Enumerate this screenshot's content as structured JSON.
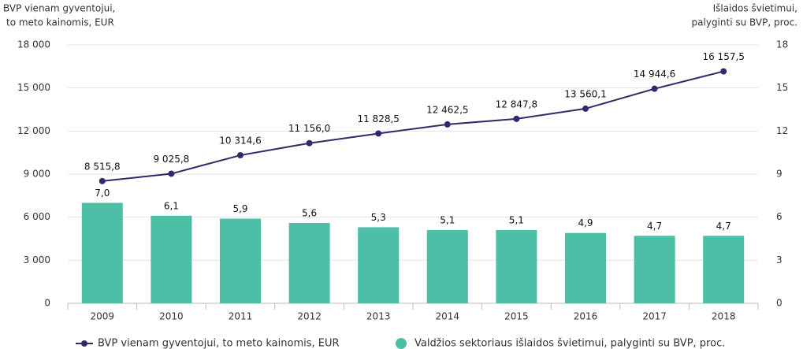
{
  "chart_data": {
    "type": "bar_line",
    "ylabel": [
      "BVP vienam gyventojui,",
      "to meto kainomis, EUR"
    ],
    "y2label": [
      "Išlaidos švietimui,",
      "palyginti su BVP, proc."
    ],
    "categories": [
      "2009",
      "2010",
      "2011",
      "2012",
      "2013",
      "2014",
      "2015",
      "2016",
      "2017",
      "2018"
    ],
    "series": [
      {
        "name": "BVP vienam gyventojui, to meto kainomis, EUR",
        "type": "line",
        "color": "#2e2b6b",
        "axis": "y",
        "values": [
          8515.8,
          9025.8,
          10314.6,
          11156.0,
          11828.5,
          12462.5,
          12847.8,
          13560.1,
          14944.6,
          16157.5
        ],
        "value_labels": [
          "8 515,8",
          "9 025,8",
          "10 314,6",
          "11 156,0",
          "11 828,5",
          "12 462,5",
          "12 847,8",
          "13 560,1",
          "14 944,6",
          "16 157,5"
        ]
      },
      {
        "name": "Valdžios sektoriaus išlaidos švietimui, palyginti su BVP, proc.",
        "type": "bar",
        "color": "#4dbfa7",
        "axis": "y2",
        "values": [
          7.0,
          6.1,
          5.9,
          5.6,
          5.3,
          5.1,
          5.1,
          4.9,
          4.7,
          4.7
        ],
        "value_labels": [
          "7,0",
          "6,1",
          "5,9",
          "5,6",
          "5,3",
          "5,1",
          "5,1",
          "4,9",
          "4,7",
          "4,7"
        ]
      }
    ],
    "ylim": [
      0,
      18000
    ],
    "yticks": [
      0,
      {
        "value": 3000,
        "label": "3 000"
      },
      {
        "value": 6000,
        "label": "6 000"
      },
      {
        "value": 9000,
        "label": "9 000"
      },
      {
        "value": 12000,
        "label": "12 000"
      },
      {
        "value": 15000,
        "label": "15 000"
      },
      {
        "value": 18000,
        "label": "18 000"
      }
    ],
    "y2lim": [
      0,
      18
    ],
    "y2ticks": [
      0,
      3,
      6,
      9,
      12,
      15,
      18
    ],
    "grid": true,
    "legend": "bottom"
  }
}
